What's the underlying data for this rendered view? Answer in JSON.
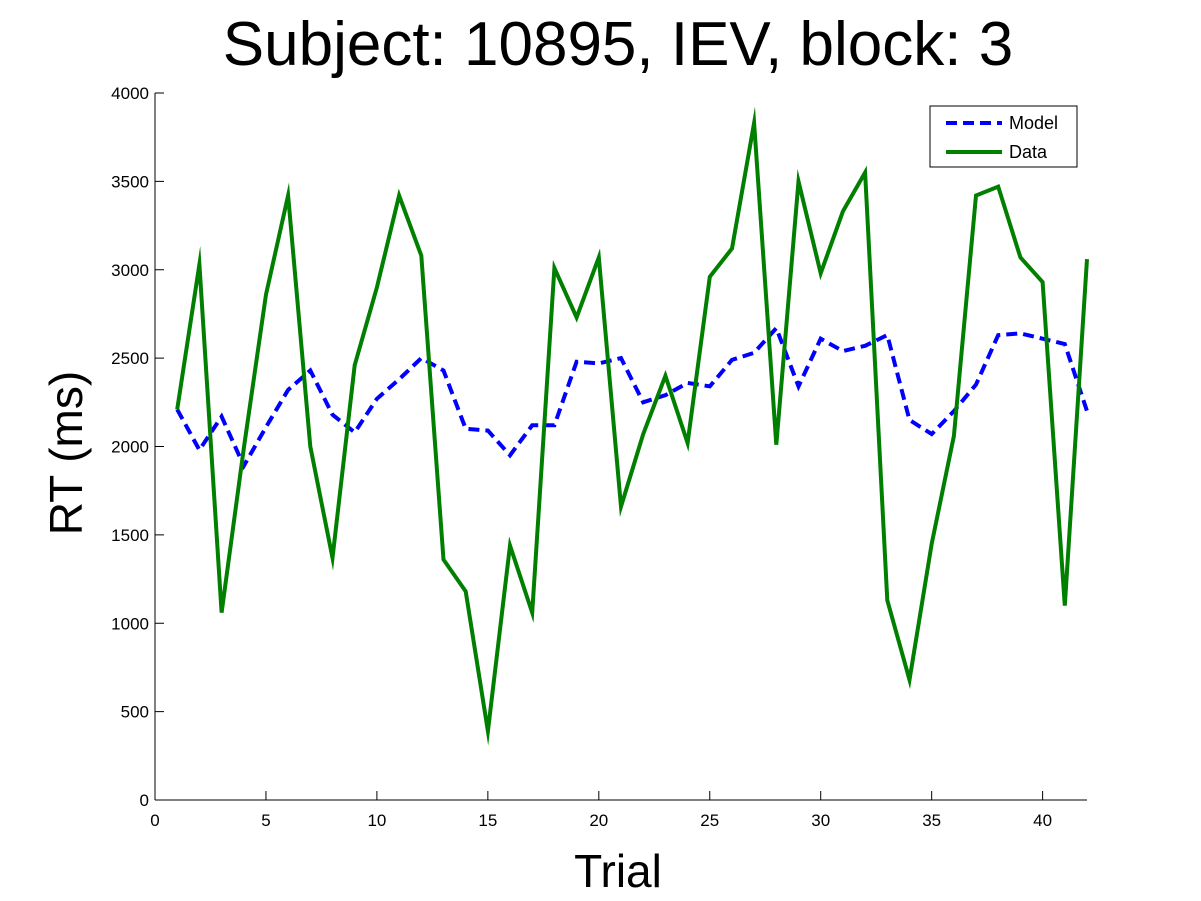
{
  "chart_data": {
    "type": "line",
    "title": "Subject: 10895, IEV, block: 3",
    "xlabel": "Trial",
    "ylabel": "RT (ms)",
    "xlim": [
      0,
      42
    ],
    "ylim": [
      0,
      4000
    ],
    "xticks": [
      0,
      5,
      10,
      15,
      20,
      25,
      30,
      35,
      40
    ],
    "yticks": [
      0,
      500,
      1000,
      1500,
      2000,
      2500,
      3000,
      3500,
      4000
    ],
    "grid": false,
    "legend_position": "top-right",
    "x": [
      1,
      2,
      3,
      4,
      5,
      6,
      7,
      8,
      9,
      10,
      11,
      12,
      13,
      14,
      15,
      16,
      17,
      18,
      19,
      20,
      21,
      22,
      23,
      24,
      25,
      26,
      27,
      28,
      29,
      30,
      31,
      32,
      33,
      34,
      35,
      36,
      37,
      38,
      39,
      40,
      41,
      42
    ],
    "series": [
      {
        "name": "Model",
        "color": "#0000ff",
        "style": "dashed",
        "values": [
          2210,
          1980,
          2170,
          1890,
          2110,
          2320,
          2430,
          2180,
          2080,
          2270,
          2380,
          2500,
          2430,
          2100,
          2090,
          1950,
          2120,
          2120,
          2480,
          2470,
          2500,
          2250,
          2290,
          2360,
          2340,
          2490,
          2530,
          2670,
          2340,
          2610,
          2540,
          2570,
          2630,
          2150,
          2070,
          2200,
          2350,
          2630,
          2640,
          2610,
          2580,
          2200
        ]
      },
      {
        "name": "Data",
        "color": "#007f00",
        "style": "solid",
        "values": [
          2210,
          3030,
          1060,
          1990,
          2860,
          3420,
          2000,
          1370,
          2460,
          2900,
          3420,
          3080,
          1360,
          1180,
          390,
          1440,
          1060,
          3010,
          2730,
          3070,
          1660,
          2070,
          2400,
          2020,
          2960,
          3120,
          3830,
          2010,
          3500,
          2980,
          3330,
          3550,
          1130,
          680,
          1450,
          2060,
          3420,
          3470,
          3070,
          2930,
          1100,
          3060
        ]
      }
    ]
  }
}
